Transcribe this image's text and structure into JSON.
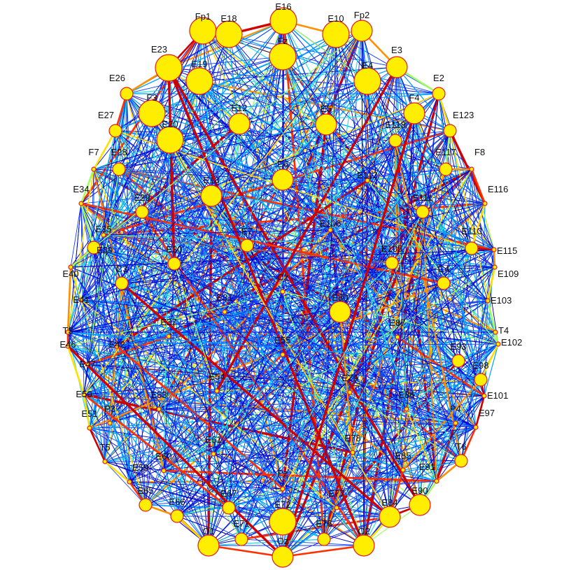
{
  "colors": {
    "node_fill": "#ffee00",
    "node_stroke": "#e8161b",
    "edge_scale": [
      "#0000c8",
      "#1040ff",
      "#00a0ff",
      "#30e0e0",
      "#a0ff60",
      "#ffe000",
      "#ff9000",
      "#ff3000",
      "#d00000"
    ]
  },
  "nodes": [
    {
      "id": "Fp1",
      "label": "Fp1",
      "size": 3
    },
    {
      "id": "E18",
      "label": "E18",
      "size": 3
    },
    {
      "id": "E16",
      "label": "E16",
      "size": 3
    },
    {
      "id": "E10",
      "label": "E10",
      "size": 3
    },
    {
      "id": "Fp2",
      "label": "Fp2",
      "size": 2
    },
    {
      "id": "E23",
      "label": "E23",
      "size": 3
    },
    {
      "id": "Fz",
      "label": "Fz",
      "size": 3
    },
    {
      "id": "E3",
      "label": "E3",
      "size": 2
    },
    {
      "id": "E19",
      "label": "E19",
      "size": 3
    },
    {
      "id": "E4",
      "label": "E4",
      "size": 3
    },
    {
      "id": "E26",
      "label": "E26",
      "size": 1
    },
    {
      "id": "E2",
      "label": "E2",
      "size": 1
    },
    {
      "id": "F3",
      "label": "F3",
      "size": 3
    },
    {
      "id": "F4",
      "label": "F4",
      "size": 2
    },
    {
      "id": "E12",
      "label": "E12",
      "size": 2
    },
    {
      "id": "E5",
      "label": "E5",
      "size": 2
    },
    {
      "id": "E27",
      "label": "E27",
      "size": 1
    },
    {
      "id": "E123",
      "label": "E123",
      "size": 1
    },
    {
      "id": "E20",
      "label": "E20",
      "size": 3
    },
    {
      "id": "E118",
      "label": "E118",
      "size": 1
    },
    {
      "id": "F7",
      "label": "F7",
      "size": 0
    },
    {
      "id": "E28",
      "label": "E28",
      "size": 1
    },
    {
      "id": "E117",
      "label": "E117",
      "size": 1
    },
    {
      "id": "F8",
      "label": "F8",
      "size": 0
    },
    {
      "id": "E6",
      "label": "E6",
      "size": 2
    },
    {
      "id": "E13",
      "label": "E13",
      "size": 2
    },
    {
      "id": "E112",
      "label": "E112",
      "size": 0
    },
    {
      "id": "E34",
      "label": "E34",
      "size": 0
    },
    {
      "id": "E116",
      "label": "E116",
      "size": 0
    },
    {
      "id": "E29",
      "label": "E29",
      "size": 1
    },
    {
      "id": "E111",
      "label": "E111",
      "size": 1
    },
    {
      "id": "E35",
      "label": "E35",
      "size": 0
    },
    {
      "id": "E106",
      "label": "E106",
      "size": 0
    },
    {
      "id": "E110",
      "label": "E110",
      "size": 1
    },
    {
      "id": "E7",
      "label": "E7",
      "size": 1
    },
    {
      "id": "E39",
      "label": "E39",
      "size": 1
    },
    {
      "id": "E30",
      "label": "E30",
      "size": 1
    },
    {
      "id": "E105",
      "label": "E105",
      "size": 1
    },
    {
      "id": "E115",
      "label": "E115",
      "size": 0
    },
    {
      "id": "C3",
      "label": "C3",
      "size": 1
    },
    {
      "id": "C4",
      "label": "C4",
      "size": 1
    },
    {
      "id": "E109",
      "label": "E109",
      "size": 0
    },
    {
      "id": "E40",
      "label": "E40",
      "size": 0
    },
    {
      "id": "Cz",
      "label": "Cz",
      "size": 0
    },
    {
      "id": "E31",
      "label": "E31",
      "size": 0
    },
    {
      "id": "E80",
      "label": "E80",
      "size": 2
    },
    {
      "id": "E41",
      "label": "E41",
      "size": 0
    },
    {
      "id": "E103",
      "label": "E103",
      "size": 0
    },
    {
      "id": "E37",
      "label": "E37",
      "size": 0
    },
    {
      "id": "E87",
      "label": "E87",
      "size": 0
    },
    {
      "id": "T3",
      "label": "T3",
      "size": 0
    },
    {
      "id": "T4",
      "label": "T4",
      "size": 0
    },
    {
      "id": "E46",
      "label": "E46",
      "size": 0
    },
    {
      "id": "E42",
      "label": "E42",
      "size": 0
    },
    {
      "id": "E55",
      "label": "E55",
      "size": 0
    },
    {
      "id": "E102",
      "label": "E102",
      "size": 0
    },
    {
      "id": "E93",
      "label": "E93",
      "size": 1
    },
    {
      "id": "E47",
      "label": "E47",
      "size": 0
    },
    {
      "id": "E98",
      "label": "E98",
      "size": 1
    },
    {
      "id": "E54",
      "label": "E54",
      "size": 0
    },
    {
      "id": "E79",
      "label": "E79",
      "size": 0
    },
    {
      "id": "E50",
      "label": "E50",
      "size": 0
    },
    {
      "id": "E53",
      "label": "E53",
      "size": 0
    },
    {
      "id": "E86",
      "label": "E86",
      "size": 0
    },
    {
      "id": "E101",
      "label": "E101",
      "size": 0
    },
    {
      "id": "P3",
      "label": "P3",
      "size": 0
    },
    {
      "id": "P4",
      "label": "P4",
      "size": 0
    },
    {
      "id": "E51",
      "label": "E51",
      "size": 0
    },
    {
      "id": "E97",
      "label": "E97",
      "size": 0
    },
    {
      "id": "E61",
      "label": "E61",
      "size": 0
    },
    {
      "id": "E78",
      "label": "E78",
      "size": 0
    },
    {
      "id": "T5",
      "label": "T5",
      "size": 0
    },
    {
      "id": "T6",
      "label": "T6",
      "size": 1
    },
    {
      "id": "E60",
      "label": "E60",
      "size": 0
    },
    {
      "id": "E85",
      "label": "E85",
      "size": 0
    },
    {
      "id": "E59",
      "label": "E59",
      "size": 0
    },
    {
      "id": "E91",
      "label": "E91",
      "size": 0
    },
    {
      "id": "Pz",
      "label": "Pz",
      "size": 0
    },
    {
      "id": "E65",
      "label": "E65",
      "size": 1
    },
    {
      "id": "E90",
      "label": "E90",
      "size": 2
    },
    {
      "id": "E66",
      "label": "E66",
      "size": 1
    },
    {
      "id": "E67",
      "label": "E67",
      "size": 1
    },
    {
      "id": "E77",
      "label": "E77",
      "size": 0
    },
    {
      "id": "E84",
      "label": "E84",
      "size": 2
    },
    {
      "id": "E72",
      "label": "E72",
      "size": 3
    },
    {
      "id": "E71",
      "label": "E71",
      "size": 1
    },
    {
      "id": "E76",
      "label": "E76",
      "size": 1
    },
    {
      "id": "O1",
      "label": "O1",
      "size": 2
    },
    {
      "id": "O2",
      "label": "O2",
      "size": 2
    },
    {
      "id": "Oz",
      "label": "Oz",
      "size": 2
    }
  ]
}
